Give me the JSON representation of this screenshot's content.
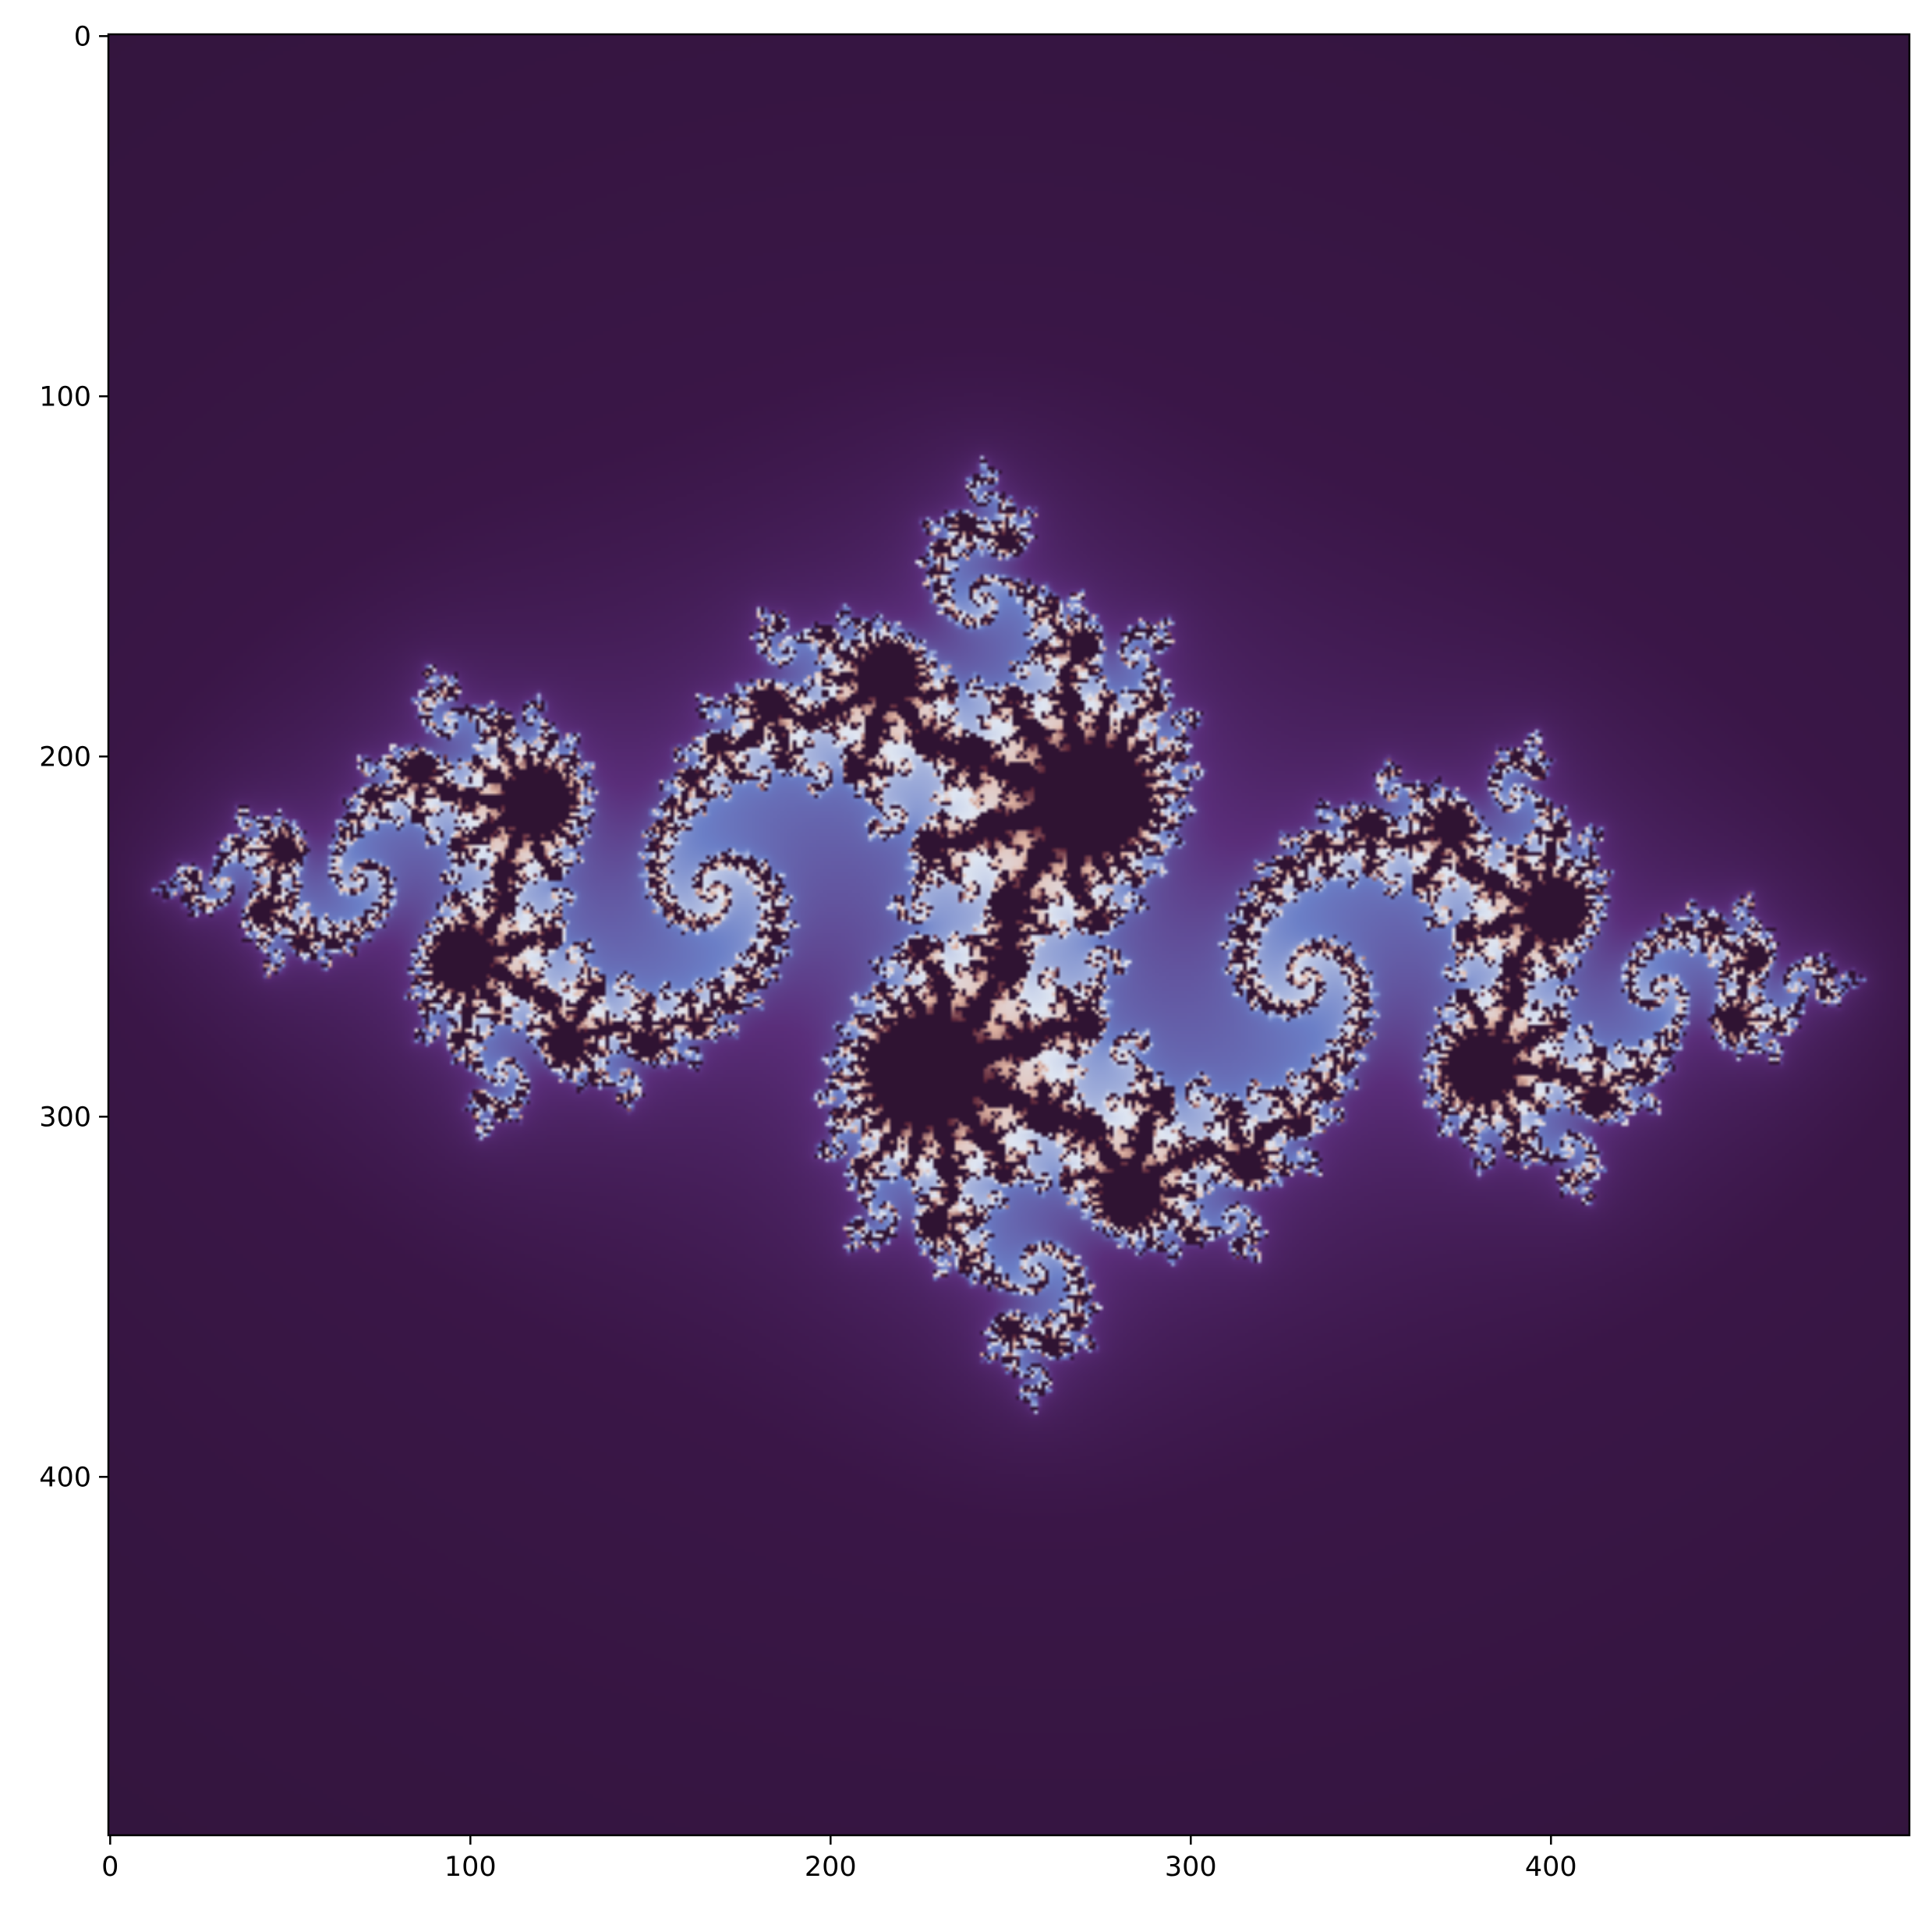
{
  "chart_data": {
    "type": "heatmap",
    "title": "",
    "xlabel": "",
    "ylabel": "",
    "x_ticks": [
      0,
      100,
      200,
      300,
      400
    ],
    "y_ticks": [
      0,
      100,
      200,
      300,
      400
    ],
    "xlim": [
      0,
      499
    ],
    "ylim": [
      499,
      0
    ],
    "image_shape": [
      500,
      500
    ],
    "fractal": {
      "kind": "julia-set",
      "c_real": -0.8,
      "c_imag": 0.156,
      "re_range": [
        -1.6,
        1.6
      ],
      "im_range": [
        -1.6,
        1.6
      ],
      "max_iter": 120
    },
    "grid": false,
    "legend": false,
    "colors": {
      "background": "#2e1437",
      "escape_low": "#5a2e7a",
      "escape_mid": "#6b7fc7",
      "escape_high": "#dfe6f2",
      "boundary_glow": "#e2b7a6",
      "interior": "#2f1332"
    }
  }
}
